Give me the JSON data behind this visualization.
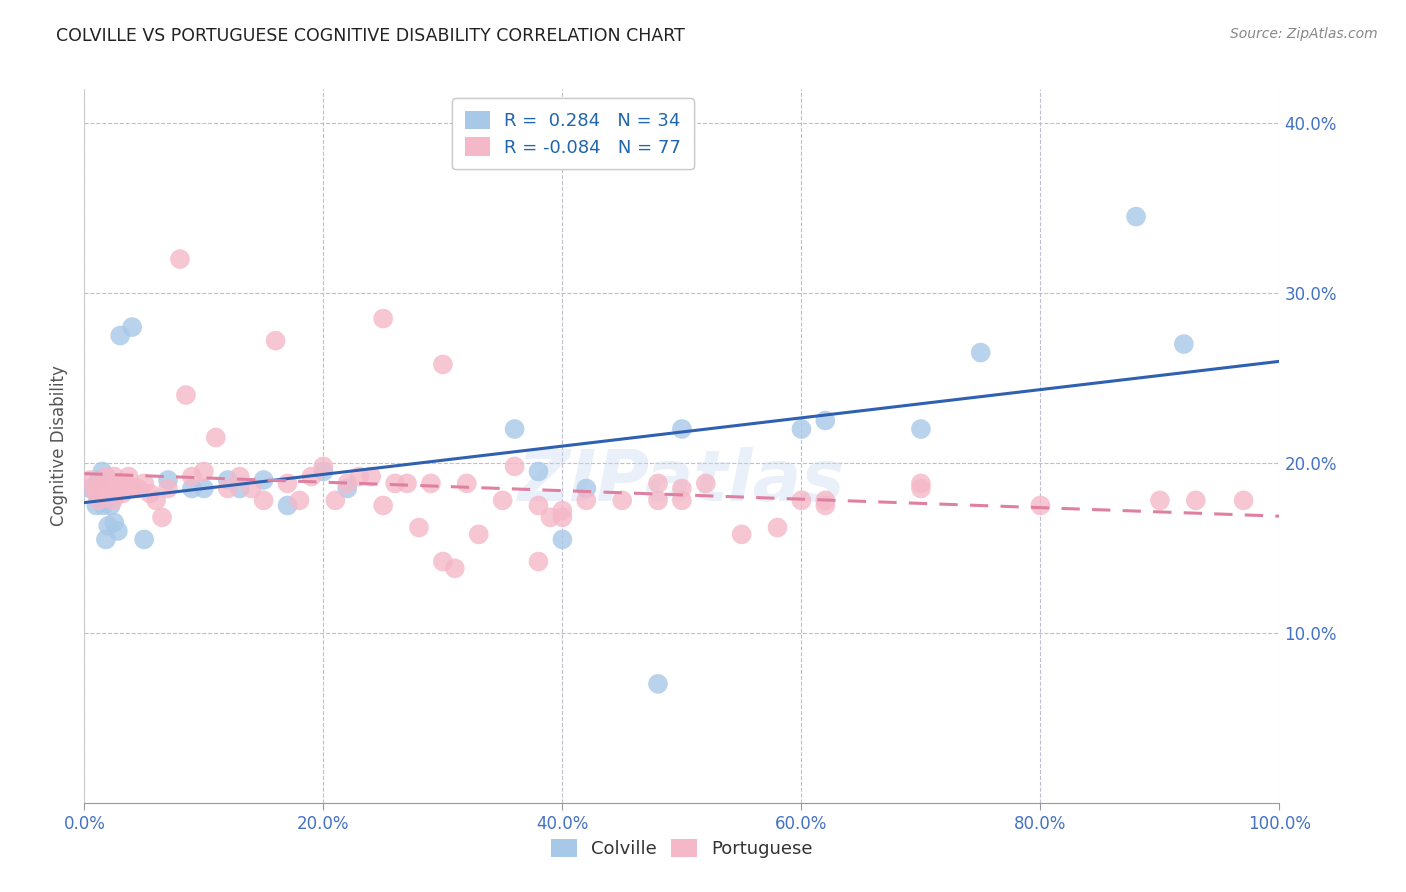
{
  "title": "COLVILLE VS PORTUGUESE COGNITIVE DISABILITY CORRELATION CHART",
  "source": "Source: ZipAtlas.com",
  "ylabel": "Cognitive Disability",
  "watermark": "ZIPatlas",
  "colville_R": 0.284,
  "colville_N": 34,
  "portuguese_R": -0.084,
  "portuguese_N": 77,
  "colville_color": "#a8c8e8",
  "portuguese_color": "#f4b8c8",
  "colville_line_color": "#3060b0",
  "portuguese_line_color": "#e080a0",
  "background_color": "#ffffff",
  "xlim": [
    0,
    1.0
  ],
  "ylim": [
    0,
    0.42
  ],
  "xticks": [
    0.0,
    0.2,
    0.4,
    0.6,
    0.8,
    1.0
  ],
  "yticks": [
    0.1,
    0.2,
    0.3,
    0.4
  ],
  "colville_x": [
    0.005,
    0.01,
    0.012,
    0.015,
    0.016,
    0.018,
    0.02,
    0.022,
    0.025,
    0.028,
    0.03,
    0.04,
    0.05,
    0.07,
    0.09,
    0.1,
    0.12,
    0.15,
    0.17,
    0.2,
    0.22,
    0.36,
    0.38,
    0.4,
    0.42,
    0.48,
    0.5,
    0.6,
    0.62,
    0.7,
    0.75,
    0.88,
    0.92,
    0.13
  ],
  "colville_y": [
    0.185,
    0.175,
    0.19,
    0.195,
    0.175,
    0.155,
    0.163,
    0.175,
    0.165,
    0.16,
    0.275,
    0.28,
    0.155,
    0.19,
    0.185,
    0.185,
    0.19,
    0.19,
    0.175,
    0.195,
    0.185,
    0.22,
    0.195,
    0.155,
    0.185,
    0.07,
    0.22,
    0.22,
    0.225,
    0.22,
    0.265,
    0.345,
    0.27,
    0.185
  ],
  "portuguese_x": [
    0.005,
    0.008,
    0.01,
    0.012,
    0.015,
    0.016,
    0.018,
    0.02,
    0.022,
    0.024,
    0.025,
    0.027,
    0.03,
    0.032,
    0.035,
    0.037,
    0.04,
    0.045,
    0.05,
    0.055,
    0.06,
    0.065,
    0.07,
    0.08,
    0.085,
    0.09,
    0.1,
    0.11,
    0.12,
    0.13,
    0.14,
    0.15,
    0.16,
    0.17,
    0.18,
    0.19,
    0.2,
    0.21,
    0.22,
    0.23,
    0.24,
    0.25,
    0.26,
    0.27,
    0.28,
    0.29,
    0.3,
    0.31,
    0.32,
    0.33,
    0.35,
    0.36,
    0.38,
    0.39,
    0.4,
    0.42,
    0.45,
    0.48,
    0.5,
    0.52,
    0.55,
    0.58,
    0.6,
    0.62,
    0.7,
    0.25,
    0.3,
    0.38,
    0.4,
    0.48,
    0.5,
    0.62,
    0.7,
    0.8,
    0.9,
    0.93,
    0.97
  ],
  "portuguese_y": [
    0.19,
    0.185,
    0.182,
    0.178,
    0.188,
    0.182,
    0.192,
    0.188,
    0.185,
    0.178,
    0.192,
    0.182,
    0.188,
    0.182,
    0.188,
    0.192,
    0.185,
    0.185,
    0.188,
    0.182,
    0.178,
    0.168,
    0.185,
    0.32,
    0.24,
    0.192,
    0.195,
    0.215,
    0.185,
    0.192,
    0.185,
    0.178,
    0.272,
    0.188,
    0.178,
    0.192,
    0.198,
    0.178,
    0.188,
    0.192,
    0.192,
    0.175,
    0.188,
    0.188,
    0.162,
    0.188,
    0.142,
    0.138,
    0.188,
    0.158,
    0.178,
    0.198,
    0.142,
    0.168,
    0.168,
    0.178,
    0.178,
    0.178,
    0.178,
    0.188,
    0.158,
    0.162,
    0.178,
    0.178,
    0.185,
    0.285,
    0.258,
    0.175,
    0.172,
    0.188,
    0.185,
    0.175,
    0.188,
    0.175,
    0.178,
    0.178,
    0.178
  ]
}
